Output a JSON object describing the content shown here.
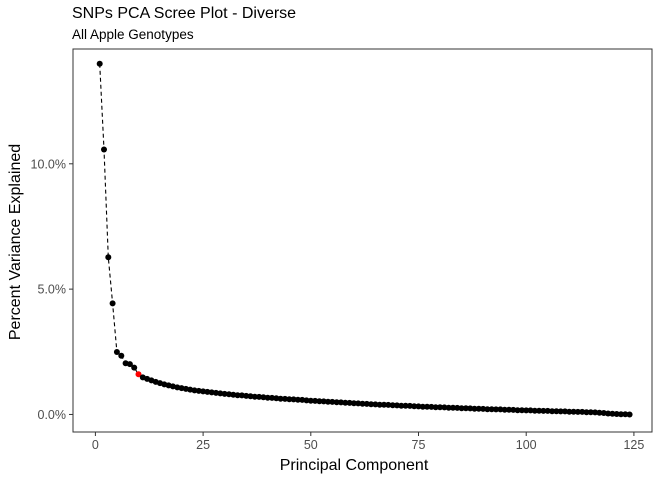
{
  "chart_data": {
    "type": "scatter",
    "title": "SNPs PCA Scree Plot - Diverse",
    "subtitle": "All Apple Genotypes",
    "xlabel": "Principal Component",
    "ylabel": "Percent Variance Explained",
    "xlim": [
      -5.2,
      129.2
    ],
    "ylim": [
      -0.007,
      0.1458
    ],
    "x_ticks": [
      0,
      25,
      50,
      75,
      100,
      125
    ],
    "x_tick_labels": [
      "0",
      "25",
      "50",
      "75",
      "100",
      "125"
    ],
    "y_ticks": [
      0,
      0.05,
      0.1
    ],
    "y_tick_labels": [
      "0.0%",
      "5.0%",
      "10.0%"
    ],
    "grid": false,
    "connector": "dashed line through PC1-PC10",
    "highlight": {
      "x": 10,
      "color": "#ff0000"
    },
    "point_color": "#000000",
    "x": [
      1,
      2,
      3,
      4,
      5,
      6,
      7,
      8,
      9,
      10,
      11,
      12,
      13,
      14,
      15,
      16,
      17,
      18,
      19,
      20,
      21,
      22,
      23,
      24,
      25,
      26,
      27,
      28,
      29,
      30,
      31,
      32,
      33,
      34,
      35,
      36,
      37,
      38,
      39,
      40,
      41,
      42,
      43,
      44,
      45,
      46,
      47,
      48,
      49,
      50,
      51,
      52,
      53,
      54,
      55,
      56,
      57,
      58,
      59,
      60,
      61,
      62,
      63,
      64,
      65,
      66,
      67,
      68,
      69,
      70,
      71,
      72,
      73,
      74,
      75,
      76,
      77,
      78,
      79,
      80,
      81,
      82,
      83,
      84,
      85,
      86,
      87,
      88,
      89,
      90,
      91,
      92,
      93,
      94,
      95,
      96,
      97,
      98,
      99,
      100,
      101,
      102,
      103,
      104,
      105,
      106,
      107,
      108,
      109,
      110,
      111,
      112,
      113,
      114,
      115,
      116,
      117,
      118,
      119,
      120,
      121,
      122,
      123,
      124
    ],
    "values": [
      0.1399,
      0.1057,
      0.0627,
      0.0443,
      0.0249,
      0.0234,
      0.0204,
      0.0201,
      0.0187,
      0.016,
      0.0148,
      0.0142,
      0.0136,
      0.013,
      0.0125,
      0.012,
      0.0116,
      0.0112,
      0.0108,
      0.0105,
      0.0102,
      0.0099,
      0.0096,
      0.0094,
      0.0092,
      0.009,
      0.0088,
      0.0086,
      0.0084,
      0.0082,
      0.0081,
      0.0079,
      0.0077,
      0.0076,
      0.0074,
      0.0073,
      0.0071,
      0.007,
      0.0069,
      0.0067,
      0.0066,
      0.0065,
      0.0063,
      0.0062,
      0.0061,
      0.006,
      0.0059,
      0.0058,
      0.0056,
      0.0055,
      0.0054,
      0.0053,
      0.0052,
      0.0051,
      0.005,
      0.0049,
      0.0048,
      0.0047,
      0.0046,
      0.0045,
      0.0044,
      0.0043,
      0.0042,
      0.0041,
      0.004,
      0.0039,
      0.0039,
      0.0038,
      0.0037,
      0.0036,
      0.0035,
      0.0035,
      0.0034,
      0.0033,
      0.0032,
      0.0031,
      0.0031,
      0.003,
      0.0029,
      0.0029,
      0.0028,
      0.0027,
      0.0027,
      0.0026,
      0.0025,
      0.0025,
      0.0024,
      0.0023,
      0.0023,
      0.0022,
      0.0021,
      0.0021,
      0.002,
      0.002,
      0.0019,
      0.0019,
      0.0018,
      0.0017,
      0.0017,
      0.0016,
      0.0016,
      0.0015,
      0.0015,
      0.0014,
      0.0014,
      0.0013,
      0.0013,
      0.0012,
      0.0012,
      0.0011,
      0.0011,
      0.001,
      0.001,
      0.0009,
      0.0009,
      0.0008,
      0.0007,
      0.0006,
      0.0004,
      0.0003,
      0.0002,
      0.0001,
      0.0001,
      0.0
    ]
  }
}
